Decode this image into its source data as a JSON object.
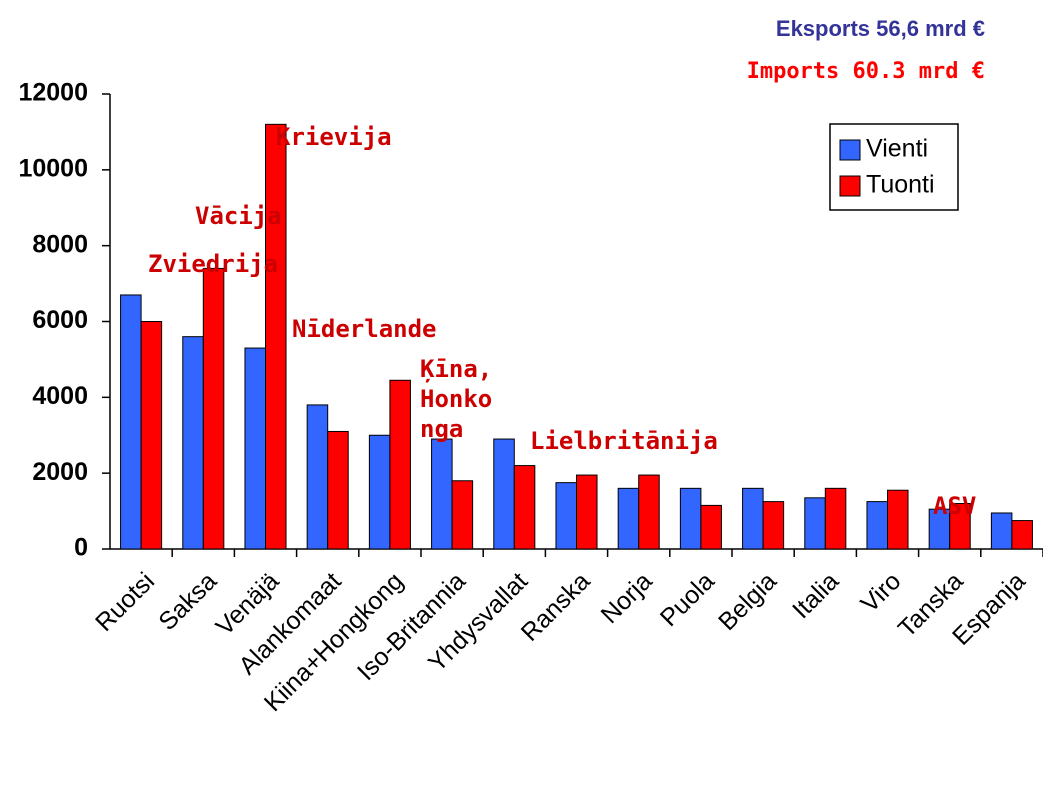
{
  "chart_data": {
    "type": "bar",
    "notes": [
      "Eksports 56,6 mrd €",
      "Imports 60.3 mrd €"
    ],
    "categories": [
      "Ruotsi",
      "Saksa",
      "Venäjä",
      "Alankomaat",
      "Kiina+Hongkong",
      "Iso-Britannia",
      "Yhdysvallat",
      "Ranska",
      "Norja",
      "Puola",
      "Belgia",
      "Italia",
      "Viro",
      "Tanska",
      "Espanja"
    ],
    "series": [
      {
        "name": "Vienti",
        "color": "#3366ff",
        "values": [
          6700,
          5600,
          5300,
          3800,
          3000,
          2900,
          2900,
          1750,
          1600,
          1600,
          1600,
          1350,
          1250,
          1050,
          950
        ]
      },
      {
        "name": "Tuonti",
        "color": "#ff0000",
        "values": [
          6000,
          7400,
          11200,
          3100,
          4450,
          1800,
          2200,
          1950,
          1950,
          1150,
          1250,
          1600,
          1550,
          1200,
          750
        ]
      }
    ],
    "annotations": [
      {
        "lines": [
          "Krievija"
        ]
      },
      {
        "lines": [
          "Vācija"
        ]
      },
      {
        "lines": [
          "Zviedrija"
        ]
      },
      {
        "lines": [
          "Nīderlande"
        ]
      },
      {
        "lines": [
          "Ķīna,",
          "Honko",
          "nga"
        ]
      },
      {
        "lines": [
          "Lielbritānija"
        ]
      },
      {
        "lines": [
          "ASV"
        ]
      }
    ],
    "ylim": [
      0,
      12000
    ],
    "yticks": [
      0,
      2000,
      4000,
      6000,
      8000,
      10000,
      12000
    ],
    "legend": "upper right"
  }
}
